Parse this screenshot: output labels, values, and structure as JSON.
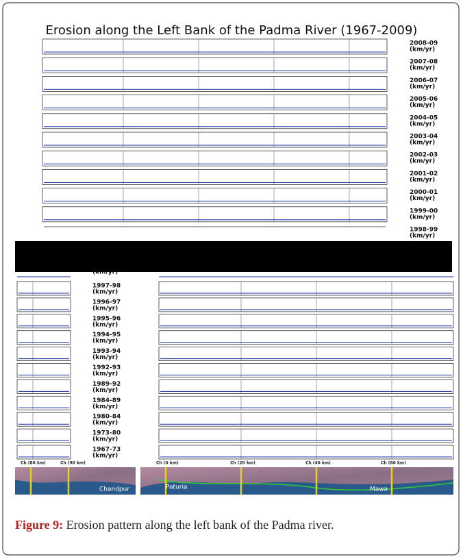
{
  "figure": {
    "title": "Erosion along the Left Bank of the Padma River (1967-2009)",
    "top_panels": [
      {
        "label": "2008-09",
        "unit": "(km/yr)"
      },
      {
        "label": "2007-08",
        "unit": "(km/yr)"
      },
      {
        "label": "2006-07",
        "unit": "(km/yr)"
      },
      {
        "label": "2005-06",
        "unit": "(km/yr)"
      },
      {
        "label": "2004-05",
        "unit": "(km/yr)"
      },
      {
        "label": "2003-04",
        "unit": "(km/yr)"
      },
      {
        "label": "2002-03",
        "unit": "(km/yr)"
      },
      {
        "label": "2001-02",
        "unit": "(km/yr)"
      },
      {
        "label": "2000-01",
        "unit": "(km/yr)"
      },
      {
        "label": "1999-00",
        "unit": "(km/yr)"
      },
      {
        "label": "1998-99",
        "unit": "(km/yr)"
      }
    ],
    "bottom_panels": [
      {
        "label": "1997-98",
        "unit": "(km/yr)"
      },
      {
        "label": "1996-97",
        "unit": "(km/yr)"
      },
      {
        "label": "1995-96",
        "unit": "(km/yr)"
      },
      {
        "label": "1994-95",
        "unit": "(km/yr)"
      },
      {
        "label": "1993-94",
        "unit": "(km/yr)"
      },
      {
        "label": "1992-93",
        "unit": "(km/yr)"
      },
      {
        "label": "1989-92",
        "unit": "(km/yr)"
      },
      {
        "label": "1984-89",
        "unit": "(km/yr)"
      },
      {
        "label": "1980-84",
        "unit": "(km/yr)"
      },
      {
        "label": "1973-80",
        "unit": "(km/yr)"
      },
      {
        "label": "1967-73",
        "unit": "(km/yr)"
      }
    ],
    "left_axis_labels": [
      "Ch (80 km)",
      "Ch (90 km)"
    ],
    "right_axis_labels": [
      "Ch (0 km)",
      "Ch (20 km)",
      "Ch (40 km)",
      "Ch (60 km)"
    ],
    "map_labels": [
      "Chandpur",
      "Paturia",
      "Mawa"
    ]
  },
  "caption": {
    "label": "Figure 9:",
    "text": "Erosion pattern along the left bank of the Padma river."
  }
}
